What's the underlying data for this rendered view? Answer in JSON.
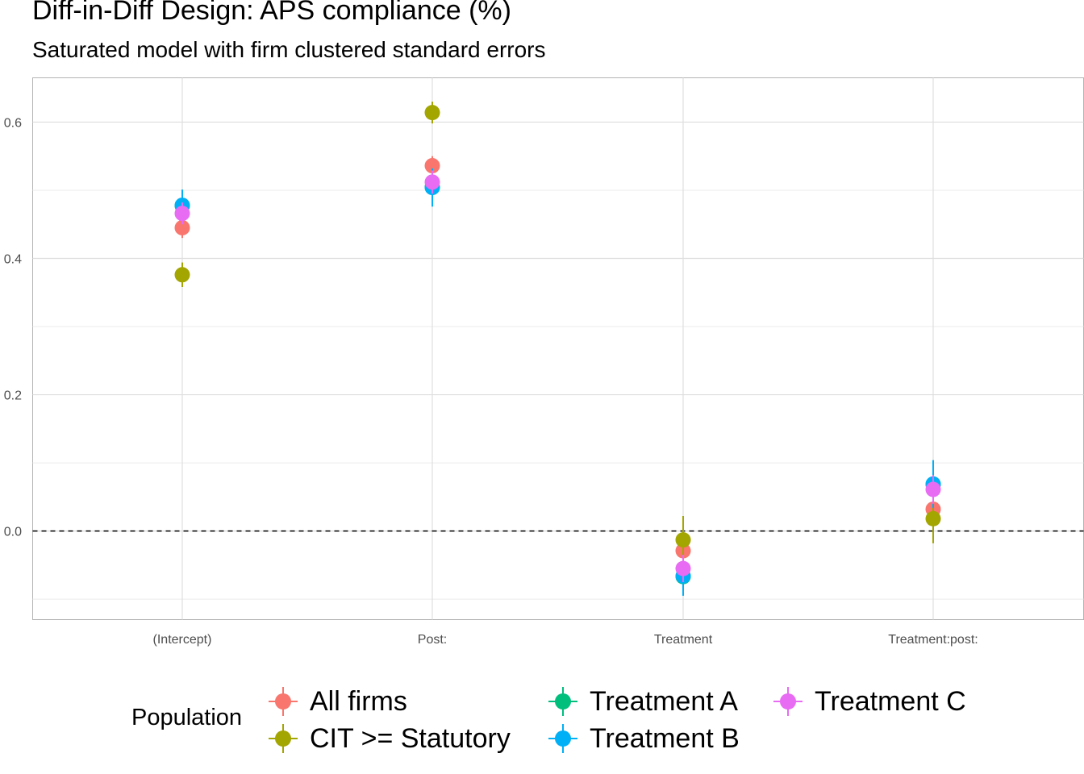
{
  "chart_data": {
    "type": "scatter",
    "title": "Diff-in-Diff Design: APS compliance (%)",
    "subtitle": "Saturated model with firm clustered standard errors",
    "xlabel": "",
    "ylabel": "",
    "categories": [
      "(Intercept)",
      "Post:",
      "Treatment",
      "Treatment:post:"
    ],
    "y_ticks": [
      0.0,
      0.2,
      0.4,
      0.6
    ],
    "ylim": [
      -0.13,
      0.665
    ],
    "grid": true,
    "reference_line": {
      "y": 0.0,
      "style": "dashed"
    },
    "legend": {
      "title": "Population",
      "position": "bottom"
    },
    "series": [
      {
        "name": "All firms",
        "color": "#F8766D",
        "values": [
          0.445,
          0.536,
          -0.029,
          0.032
        ],
        "lower": [
          0.43,
          0.522,
          -0.048,
          0.016
        ],
        "upper": [
          0.46,
          0.55,
          -0.01,
          0.048
        ]
      },
      {
        "name": "CIT >= Statutory",
        "color": "#A3A500",
        "values": [
          0.376,
          0.614,
          -0.013,
          0.018
        ],
        "lower": [
          0.358,
          0.598,
          -0.048,
          -0.018
        ],
        "upper": [
          0.394,
          0.63,
          0.022,
          0.054
        ]
      },
      {
        "name": "Treatment A",
        "color": "#00BF7D",
        "values": [
          0.477,
          0.505,
          -0.067,
          0.068
        ],
        "lower": [
          0.458,
          0.48,
          -0.09,
          0.038
        ],
        "upper": [
          0.496,
          0.53,
          -0.044,
          0.098
        ]
      },
      {
        "name": "Treatment B",
        "color": "#00B0F6",
        "values": [
          0.478,
          0.504,
          -0.066,
          0.069
        ],
        "lower": [
          0.455,
          0.476,
          -0.095,
          0.034
        ],
        "upper": [
          0.501,
          0.532,
          -0.037,
          0.104
        ]
      },
      {
        "name": "Treatment C",
        "color": "#E76BF3",
        "values": [
          0.466,
          0.512,
          -0.055,
          0.061
        ],
        "lower": [
          0.45,
          0.495,
          -0.075,
          0.04
        ],
        "upper": [
          0.482,
          0.529,
          -0.035,
          0.082
        ]
      }
    ]
  }
}
